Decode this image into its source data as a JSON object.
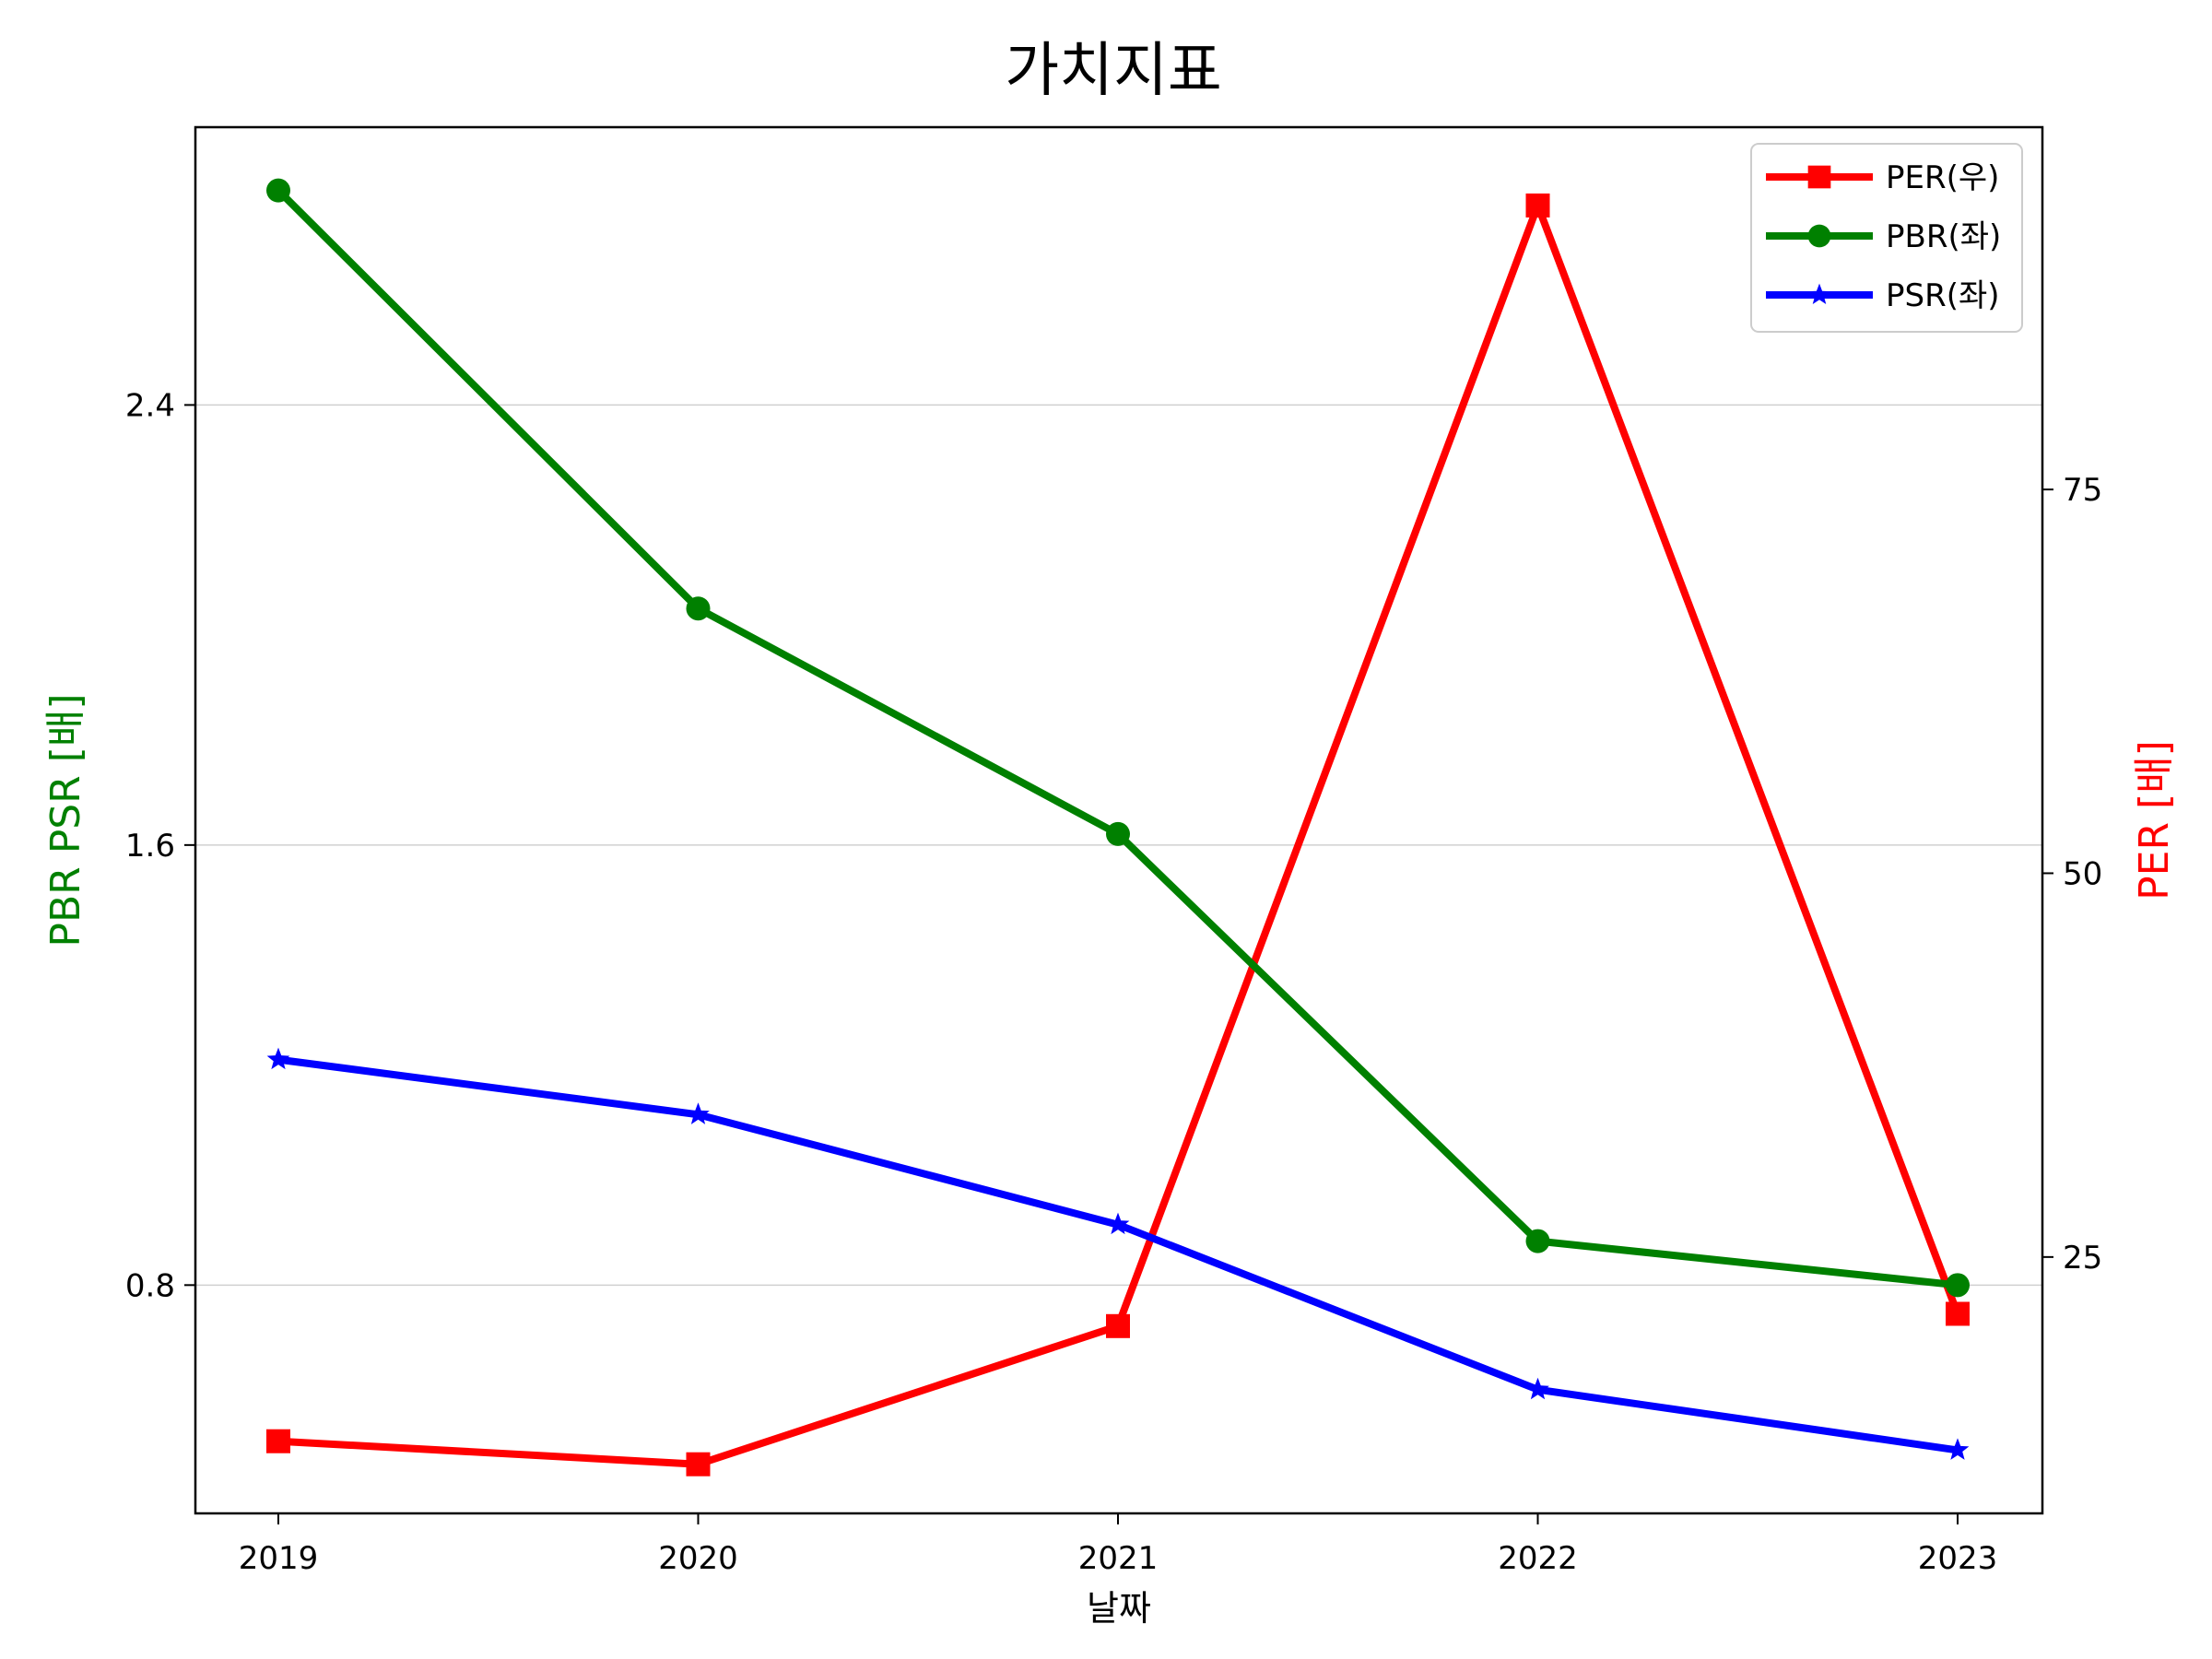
{
  "chart_data": {
    "type": "line",
    "title": "가치지표",
    "xlabel": "날짜",
    "ylabel_left": "PBR PSR [배]",
    "ylabel_right": "PER [배]",
    "categories": [
      "2019",
      "2020",
      "2021",
      "2022",
      "2023"
    ],
    "y_left": {
      "ylim": [
        0.385,
        2.905
      ],
      "ticks": [
        0.8,
        1.6,
        2.4
      ],
      "tick_labels": [
        "0.8",
        "1.6",
        "2.4"
      ]
    },
    "y_right": {
      "ylim": [
        8.3,
        98.6
      ],
      "ticks": [
        25,
        50,
        75
      ],
      "tick_labels": [
        "25",
        "50",
        "75"
      ]
    },
    "grid": "horizontal",
    "legend_position": "top-right",
    "series": [
      {
        "name": "PER(우)",
        "axis": "right",
        "color": "#ff0000",
        "marker": "square",
        "values": [
          13.0,
          11.5,
          20.5,
          93.5,
          21.3
        ]
      },
      {
        "name": "PBR(좌)",
        "axis": "left",
        "color": "#008000",
        "marker": "circle",
        "values": [
          2.79,
          2.03,
          1.62,
          0.88,
          0.8
        ]
      },
      {
        "name": "PSR(좌)",
        "axis": "left",
        "color": "#0000ff",
        "marker": "star",
        "values": [
          1.21,
          1.11,
          0.91,
          0.61,
          0.5
        ]
      }
    ]
  }
}
